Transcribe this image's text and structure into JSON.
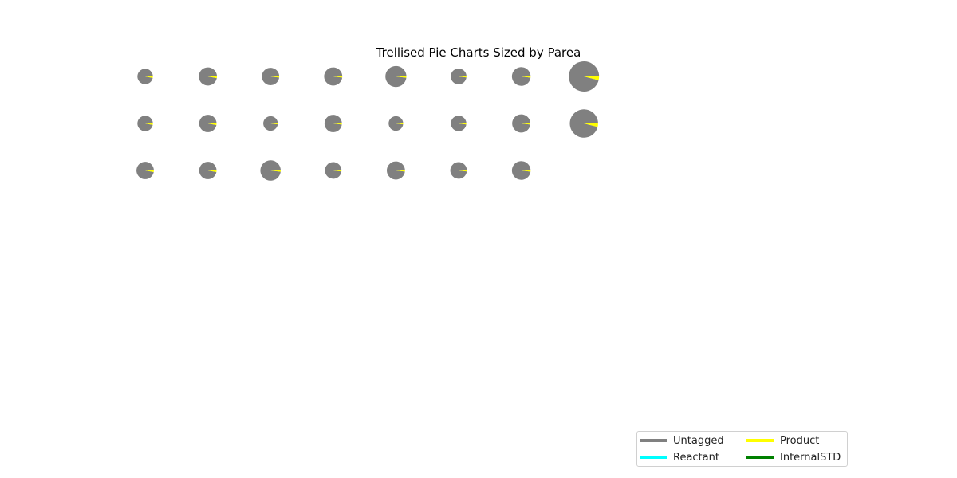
{
  "chart_data": {
    "type": "pie",
    "title": "Trellised Pie Charts Sized by Parea",
    "layout": "trellis grid, 3 rows x 8 columns, pie size proportional to Parea",
    "categories": [
      "Untagged",
      "Reactant",
      "Product",
      "InternalSTD"
    ],
    "colors": {
      "Untagged": "#808080",
      "Reactant": "#00ffff",
      "Product": "#ffff00",
      "InternalSTD": "#008000"
    },
    "pies": [
      {
        "row": 1,
        "col": 1,
        "size": 0.26,
        "values": [
          0.97,
          0,
          0.03,
          0
        ]
      },
      {
        "row": 1,
        "col": 2,
        "size": 0.36,
        "values": [
          0.97,
          0,
          0.03,
          0
        ]
      },
      {
        "row": 1,
        "col": 3,
        "size": 0.33,
        "values": [
          0.98,
          0,
          0.02,
          0
        ]
      },
      {
        "row": 1,
        "col": 4,
        "size": 0.36,
        "values": [
          0.98,
          0,
          0.02,
          0
        ]
      },
      {
        "row": 1,
        "col": 5,
        "size": 0.48,
        "values": [
          0.98,
          0,
          0.02,
          0
        ]
      },
      {
        "row": 1,
        "col": 6,
        "size": 0.27,
        "values": [
          0.98,
          0,
          0.02,
          0
        ]
      },
      {
        "row": 1,
        "col": 7,
        "size": 0.38,
        "values": [
          0.98,
          0,
          0.02,
          0
        ]
      },
      {
        "row": 1,
        "col": 8,
        "size": 1.0,
        "values": [
          0.96,
          0,
          0.04,
          0
        ]
      },
      {
        "row": 2,
        "col": 1,
        "size": 0.26,
        "values": [
          0.97,
          0,
          0.03,
          0
        ]
      },
      {
        "row": 2,
        "col": 2,
        "size": 0.33,
        "values": [
          0.97,
          0,
          0.03,
          0
        ]
      },
      {
        "row": 2,
        "col": 3,
        "size": 0.23,
        "values": [
          0.98,
          0,
          0.02,
          0
        ]
      },
      {
        "row": 2,
        "col": 4,
        "size": 0.33,
        "values": [
          0.98,
          0,
          0.02,
          0
        ]
      },
      {
        "row": 2,
        "col": 5,
        "size": 0.23,
        "values": [
          0.98,
          0,
          0.02,
          0
        ]
      },
      {
        "row": 2,
        "col": 6,
        "size": 0.26,
        "values": [
          0.98,
          0,
          0.02,
          0
        ]
      },
      {
        "row": 2,
        "col": 7,
        "size": 0.36,
        "values": [
          0.98,
          0,
          0.02,
          0
        ]
      },
      {
        "row": 2,
        "col": 8,
        "size": 0.87,
        "values": [
          0.96,
          0,
          0.04,
          0
        ]
      },
      {
        "row": 3,
        "col": 1,
        "size": 0.33,
        "values": [
          0.97,
          0,
          0.03,
          0
        ]
      },
      {
        "row": 3,
        "col": 2,
        "size": 0.33,
        "values": [
          0.97,
          0,
          0.03,
          0
        ]
      },
      {
        "row": 3,
        "col": 3,
        "size": 0.45,
        "values": [
          0.98,
          0,
          0.02,
          0
        ]
      },
      {
        "row": 3,
        "col": 4,
        "size": 0.3,
        "values": [
          0.98,
          0,
          0.02,
          0
        ]
      },
      {
        "row": 3,
        "col": 5,
        "size": 0.36,
        "values": [
          0.98,
          0,
          0.02,
          0
        ]
      },
      {
        "row": 3,
        "col": 6,
        "size": 0.3,
        "values": [
          0.98,
          0,
          0.02,
          0
        ]
      },
      {
        "row": 3,
        "col": 7,
        "size": 0.38,
        "values": [
          0.98,
          0,
          0.02,
          0
        ]
      }
    ],
    "legend": {
      "placement": "bottom-right",
      "columns": 2,
      "entries": [
        "Untagged",
        "Product",
        "Reactant",
        "InternalSTD"
      ]
    }
  }
}
